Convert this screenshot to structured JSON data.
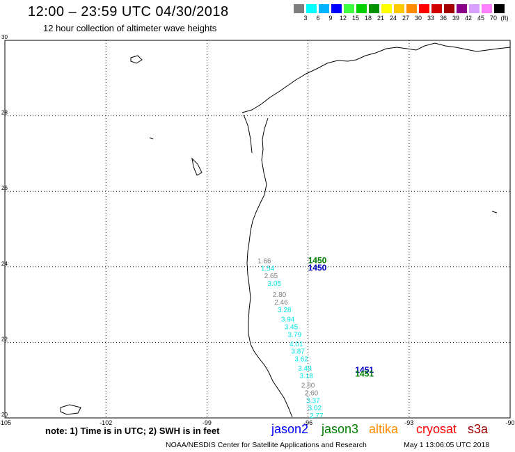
{
  "header": {
    "title": "12:00 – 23:59 UTC 04/30/2018",
    "subtitle": "12 hour collection of altimeter wave heights"
  },
  "colorbar": {
    "unit": "(ft)",
    "labels": [
      "3",
      "6",
      "9",
      "12",
      "15",
      "18",
      "21",
      "24",
      "27",
      "30",
      "33",
      "36",
      "39",
      "42",
      "45",
      "70"
    ],
    "colors": [
      "#7f7f7f",
      "#00ffff",
      "#00b4ff",
      "#0000ff",
      "#40ff40",
      "#00d000",
      "#009000",
      "#ffff00",
      "#ffc800",
      "#ff8c00",
      "#ff0000",
      "#d00000",
      "#a00000",
      "#8b008b",
      "#d8a0ff",
      "#ff80ff",
      "#000000"
    ]
  },
  "map": {
    "lat_ticks": [
      "30",
      "28",
      "26",
      "24",
      "22",
      "20"
    ],
    "lon_ticks": [
      "-105",
      "-102",
      "-99",
      "-96",
      "-93",
      "-90"
    ],
    "pass_labels": [
      {
        "text": "1450",
        "color": "#008000",
        "lon": -96.0,
        "lat": 24.1
      },
      {
        "text": "1450",
        "color": "#0000c0",
        "lon": -96.0,
        "lat": 23.9
      },
      {
        "text": "1451",
        "color": "#0000c0",
        "lon": -94.6,
        "lat": 21.2
      },
      {
        "text": "1451",
        "color": "#008000",
        "lon": -94.6,
        "lat": 21.1
      }
    ],
    "swh_labels": [
      {
        "text": "1.66",
        "color": "#808080",
        "lon": -97.5,
        "lat": 24.1
      },
      {
        "text": "1.54",
        "color": "#00e5e5",
        "lon": -97.4,
        "lat": 23.9
      },
      {
        "text": "2.65",
        "color": "#808080",
        "lon": -97.3,
        "lat": 23.7
      },
      {
        "text": "3.05",
        "color": "#00e5e5",
        "lon": -97.2,
        "lat": 23.5
      },
      {
        "text": "2.80",
        "color": "#808080",
        "lon": -97.05,
        "lat": 23.2
      },
      {
        "text": "2.46",
        "color": "#808080",
        "lon": -97.0,
        "lat": 23.0
      },
      {
        "text": "3.28",
        "color": "#00e5e5",
        "lon": -96.9,
        "lat": 22.8
      },
      {
        "text": "3.94",
        "color": "#00e5e5",
        "lon": -96.8,
        "lat": 22.55
      },
      {
        "text": "3.45",
        "color": "#00e5e5",
        "lon": -96.7,
        "lat": 22.35
      },
      {
        "text": "3.79",
        "color": "#00e5e5",
        "lon": -96.6,
        "lat": 22.15
      },
      {
        "text": "4.01",
        "color": "#00e5e5",
        "lon": -96.55,
        "lat": 21.9
      },
      {
        "text": "3.87",
        "color": "#00e5e5",
        "lon": -96.5,
        "lat": 21.7
      },
      {
        "text": "3.62",
        "color": "#00e5e5",
        "lon": -96.4,
        "lat": 21.5
      },
      {
        "text": "3.48",
        "color": "#00e5e5",
        "lon": -96.3,
        "lat": 21.25
      },
      {
        "text": "3.18",
        "color": "#00e5e5",
        "lon": -96.25,
        "lat": 21.05
      },
      {
        "text": "2.80",
        "color": "#808080",
        "lon": -96.2,
        "lat": 20.8
      },
      {
        "text": "2.60",
        "color": "#808080",
        "lon": -96.1,
        "lat": 20.6
      },
      {
        "text": "3.37",
        "color": "#00e5e5",
        "lon": -96.05,
        "lat": 20.4
      },
      {
        "text": "3.02",
        "color": "#00e5e5",
        "lon": -96.0,
        "lat": 20.2
      },
      {
        "text": "2.77",
        "color": "#00e5e5",
        "lon": -95.95,
        "lat": 20.0
      }
    ]
  },
  "footer": {
    "note": "note: 1) Time is in UTC; 2) SWH is in feet",
    "satellites": [
      {
        "name": "jason2",
        "color": "#0000ff"
      },
      {
        "name": "jason3",
        "color": "#008000"
      },
      {
        "name": "altika",
        "color": "#ff8c00"
      },
      {
        "name": "cryosat",
        "color": "#ff0000"
      },
      {
        "name": "s3a",
        "color": "#a00000"
      }
    ],
    "credit": "NOAA/NESDIS Center for Satellite Applications and Research",
    "timestamp": "May  1 13:06:05 UTC 2018"
  }
}
